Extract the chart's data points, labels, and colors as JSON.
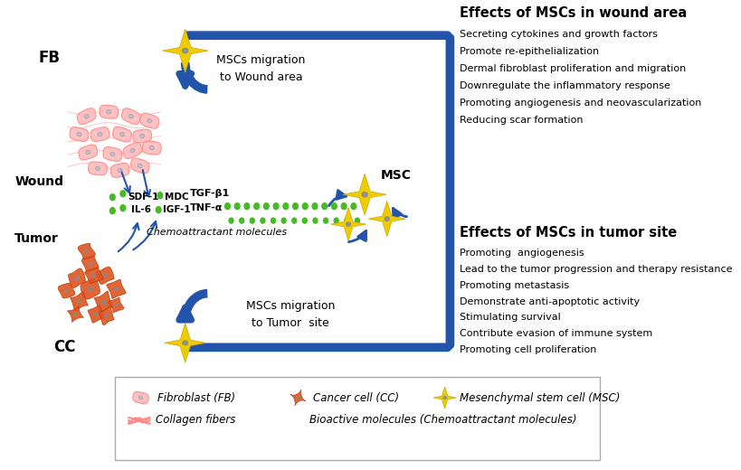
{
  "bg_color": "#ffffff",
  "wound_effects_title": "Effects of MSCs in wound area",
  "wound_effects": [
    "Secreting cytokines and growth factors",
    "Promote re-epithelialization",
    "Dermal fibroblast proliferation and migration",
    "Downregulate the inflammatory response",
    "Promoting angiogenesis and neovascularization",
    "Reducing scar formation"
  ],
  "tumor_effects_title": "Effects of MSCs in tumor site",
  "tumor_effects": [
    "Promoting  angiogenesis",
    "Lead to the tumor progression and therapy resistance",
    "Promoting metastasis",
    "Demonstrate anti-apoptotic activity",
    "Stimulating survival",
    "Contribute evasion of immune system",
    "Promoting cell proliferation"
  ],
  "chemoattract_labels": [
    "SDF-1",
    "MDC",
    "TGF-β1",
    "IL-6",
    "IGF-1",
    "TNF-α"
  ],
  "wound_migration_text": "MSCs migration\nto Wound area",
  "tumor_migration_text": "MSCs migration\nto Tumor  site",
  "fb_label": "FB",
  "wound_label": "Wound",
  "tumor_label": "Tumor",
  "cc_label": "CC",
  "msc_label": "MSC",
  "chemo_label": "Chemoattractant molecules",
  "legend_items": [
    "Fibroblast (FB)",
    "Cancer cell (CC)",
    "Mesenchymal stem cell (MSC)",
    "Collagen fibers",
    "Bioactive molecules (Chemoattractant molecules)"
  ],
  "border_color": "#2255aa",
  "dot_color": "#44bb22",
  "fb_color": "#ffaaaa",
  "cc_color": "#cc4422",
  "msc_color": "#eecc00"
}
